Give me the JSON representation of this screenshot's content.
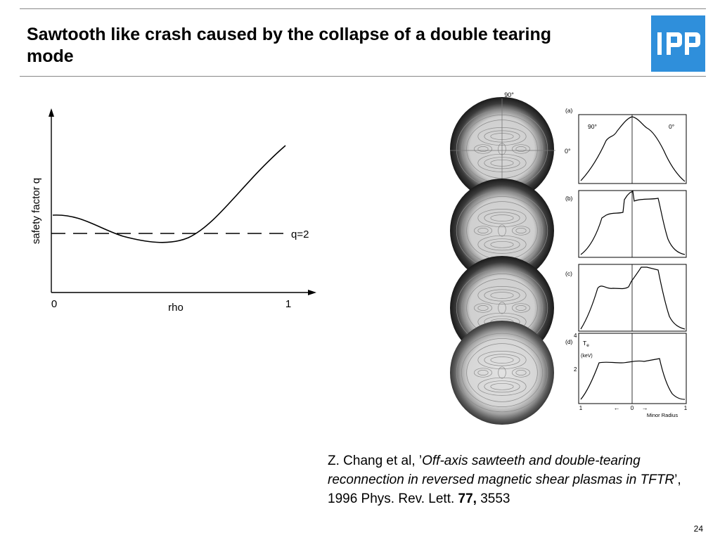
{
  "slide": {
    "title": "Sawtooth like crash caused by the collapse of a double tearing mode",
    "page_number": "24",
    "logo_text": "IPP"
  },
  "q_profile_sketch": {
    "ylabel": "safety factor q",
    "xlabel": "rho",
    "x_tick_start": "0",
    "x_tick_end": "1",
    "reference_line_label": "q=2"
  },
  "experiment_figure": {
    "top_angle_label": "90°",
    "side_angle_label": "0°",
    "panel_labels": [
      "(a)",
      "(b)",
      "(c)",
      "(d)"
    ],
    "profile_labels": {
      "left": "90°",
      "right": "0°"
    },
    "te_symbol": "T",
    "te_subscript": "e",
    "te_unit": "(keV)",
    "y_ticks": [
      "4",
      "2"
    ],
    "x_ticks": [
      "1",
      "0",
      "1"
    ],
    "left_arrow": "←",
    "right_arrow": "→",
    "xlabel": "Minor Radius"
  },
  "citation": {
    "prefix": "Z. Chang et al, ’",
    "italic": "Off-axis sawteeth and double-tearing reconnection in reversed magnetic shear plasmas in TFTR",
    "mid": "’, 1996 Phys. Rev. Lett. ",
    "volume": "77,",
    "pages": " 3553"
  }
}
